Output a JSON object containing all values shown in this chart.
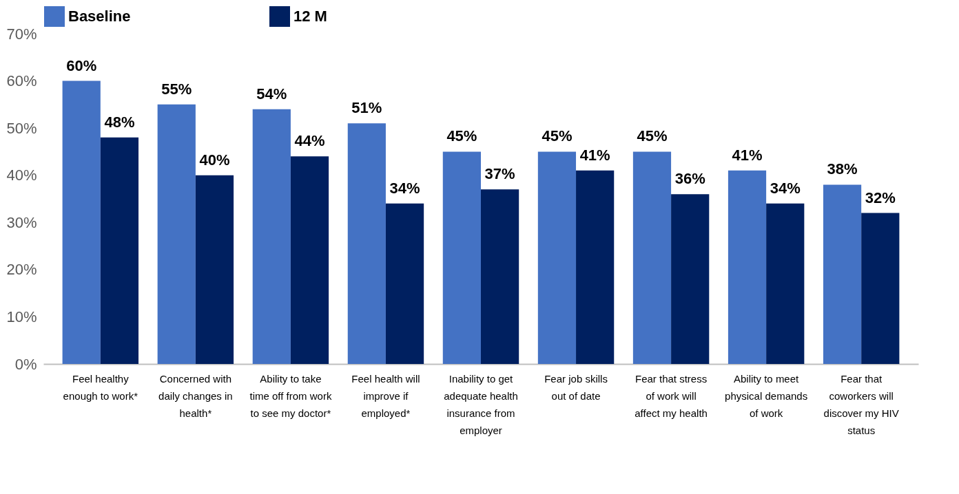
{
  "chart_data": {
    "type": "bar",
    "categories": [
      "Feel healthy enough to work*",
      "Concerned with daily changes in health*",
      "Ability to take time off from work to see my doctor*",
      "Feel health will improve if employed*",
      "Inability to get adequate health insurance from employer",
      "Fear job skills out of date",
      "Fear that stress of work will affect my health",
      "Ability to meet physical demands of work",
      "Fear that coworkers will discover my HIV status"
    ],
    "series": [
      {
        "name": "Baseline",
        "color": "#4472c4",
        "values": [
          60,
          55,
          54,
          51,
          45,
          45,
          45,
          41,
          38
        ],
        "value_labels": [
          "60%",
          "55%",
          "54%",
          "51%",
          "45%",
          "45%",
          "45%",
          "41%",
          "38%"
        ]
      },
      {
        "name": "12 M",
        "color": "#002060",
        "values": [
          48,
          40,
          44,
          34,
          37,
          41,
          36,
          34,
          32
        ],
        "value_labels": [
          "48%",
          "40%",
          "44%",
          "34%",
          "37%",
          "41%",
          "36%",
          "34%",
          "32%"
        ]
      }
    ],
    "ylim": [
      0,
      70
    ],
    "yticks": [
      {
        "value": 0,
        "label": "0%"
      },
      {
        "value": 10,
        "label": "10%"
      },
      {
        "value": 20,
        "label": "20%"
      },
      {
        "value": 30,
        "label": "30%"
      },
      {
        "value": 40,
        "label": "40%"
      },
      {
        "value": 50,
        "label": "50%"
      },
      {
        "value": 60,
        "label": "60%"
      },
      {
        "value": 70,
        "label": "70%"
      }
    ],
    "legend": "top"
  }
}
